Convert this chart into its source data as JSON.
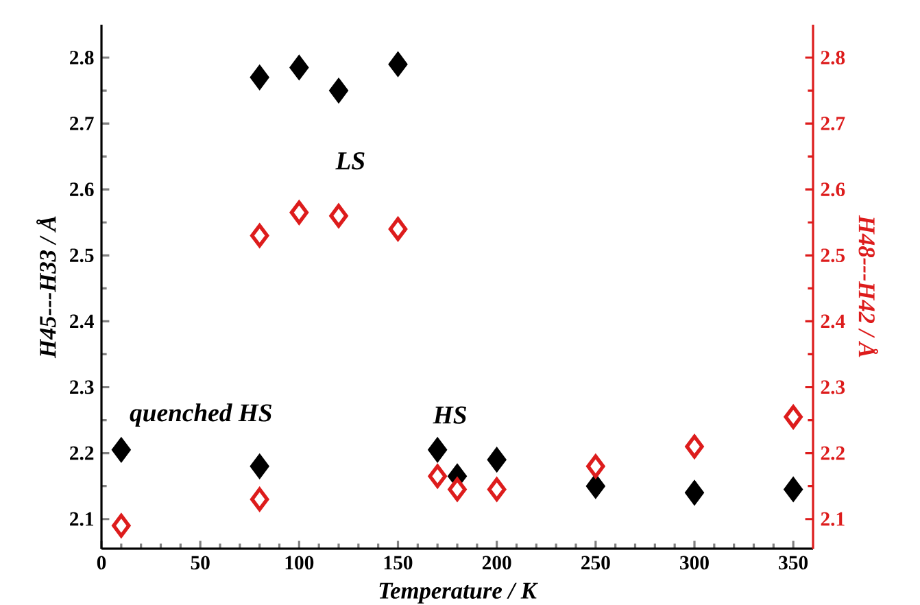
{
  "chart_data": {
    "type": "scatter",
    "xlabel": "Temperature / K",
    "ylabel": "H45---H33 / Å",
    "y2label": "H48---H42 / Å",
    "xlim": [
      0,
      360
    ],
    "xticks": [
      0,
      50,
      100,
      150,
      200,
      250,
      300,
      350
    ],
    "ylim": [
      2.055,
      2.85
    ],
    "yticks": [
      2.1,
      2.2,
      2.3,
      2.4,
      2.5,
      2.6,
      2.7,
      2.8
    ],
    "y2lim": [
      2.055,
      2.85
    ],
    "y2ticks": [
      2.1,
      2.2,
      2.3,
      2.4,
      2.5,
      2.6,
      2.7,
      2.8
    ],
    "marker": "diamond",
    "grid": false,
    "series": [
      {
        "color": "#000000",
        "x": [
          10,
          80,
          80,
          100,
          120,
          150,
          170,
          180,
          200,
          250,
          300,
          350
        ],
        "values": [
          2.205,
          2.18,
          2.77,
          2.785,
          2.75,
          2.79,
          2.205,
          2.165,
          2.19,
          2.15,
          2.14,
          2.145
        ]
      },
      {
        "color": "#dd1c1c",
        "axis": "y2",
        "x": [
          10,
          80,
          80,
          100,
          120,
          150,
          170,
          180,
          200,
          250,
          300,
          350
        ],
        "values": [
          2.09,
          2.13,
          2.53,
          2.565,
          2.56,
          2.54,
          2.165,
          2.145,
          2.145,
          2.18,
          2.21,
          2.255
        ]
      }
    ],
    "annotations": [
      "LS",
      "quenched HS",
      "HS"
    ]
  }
}
